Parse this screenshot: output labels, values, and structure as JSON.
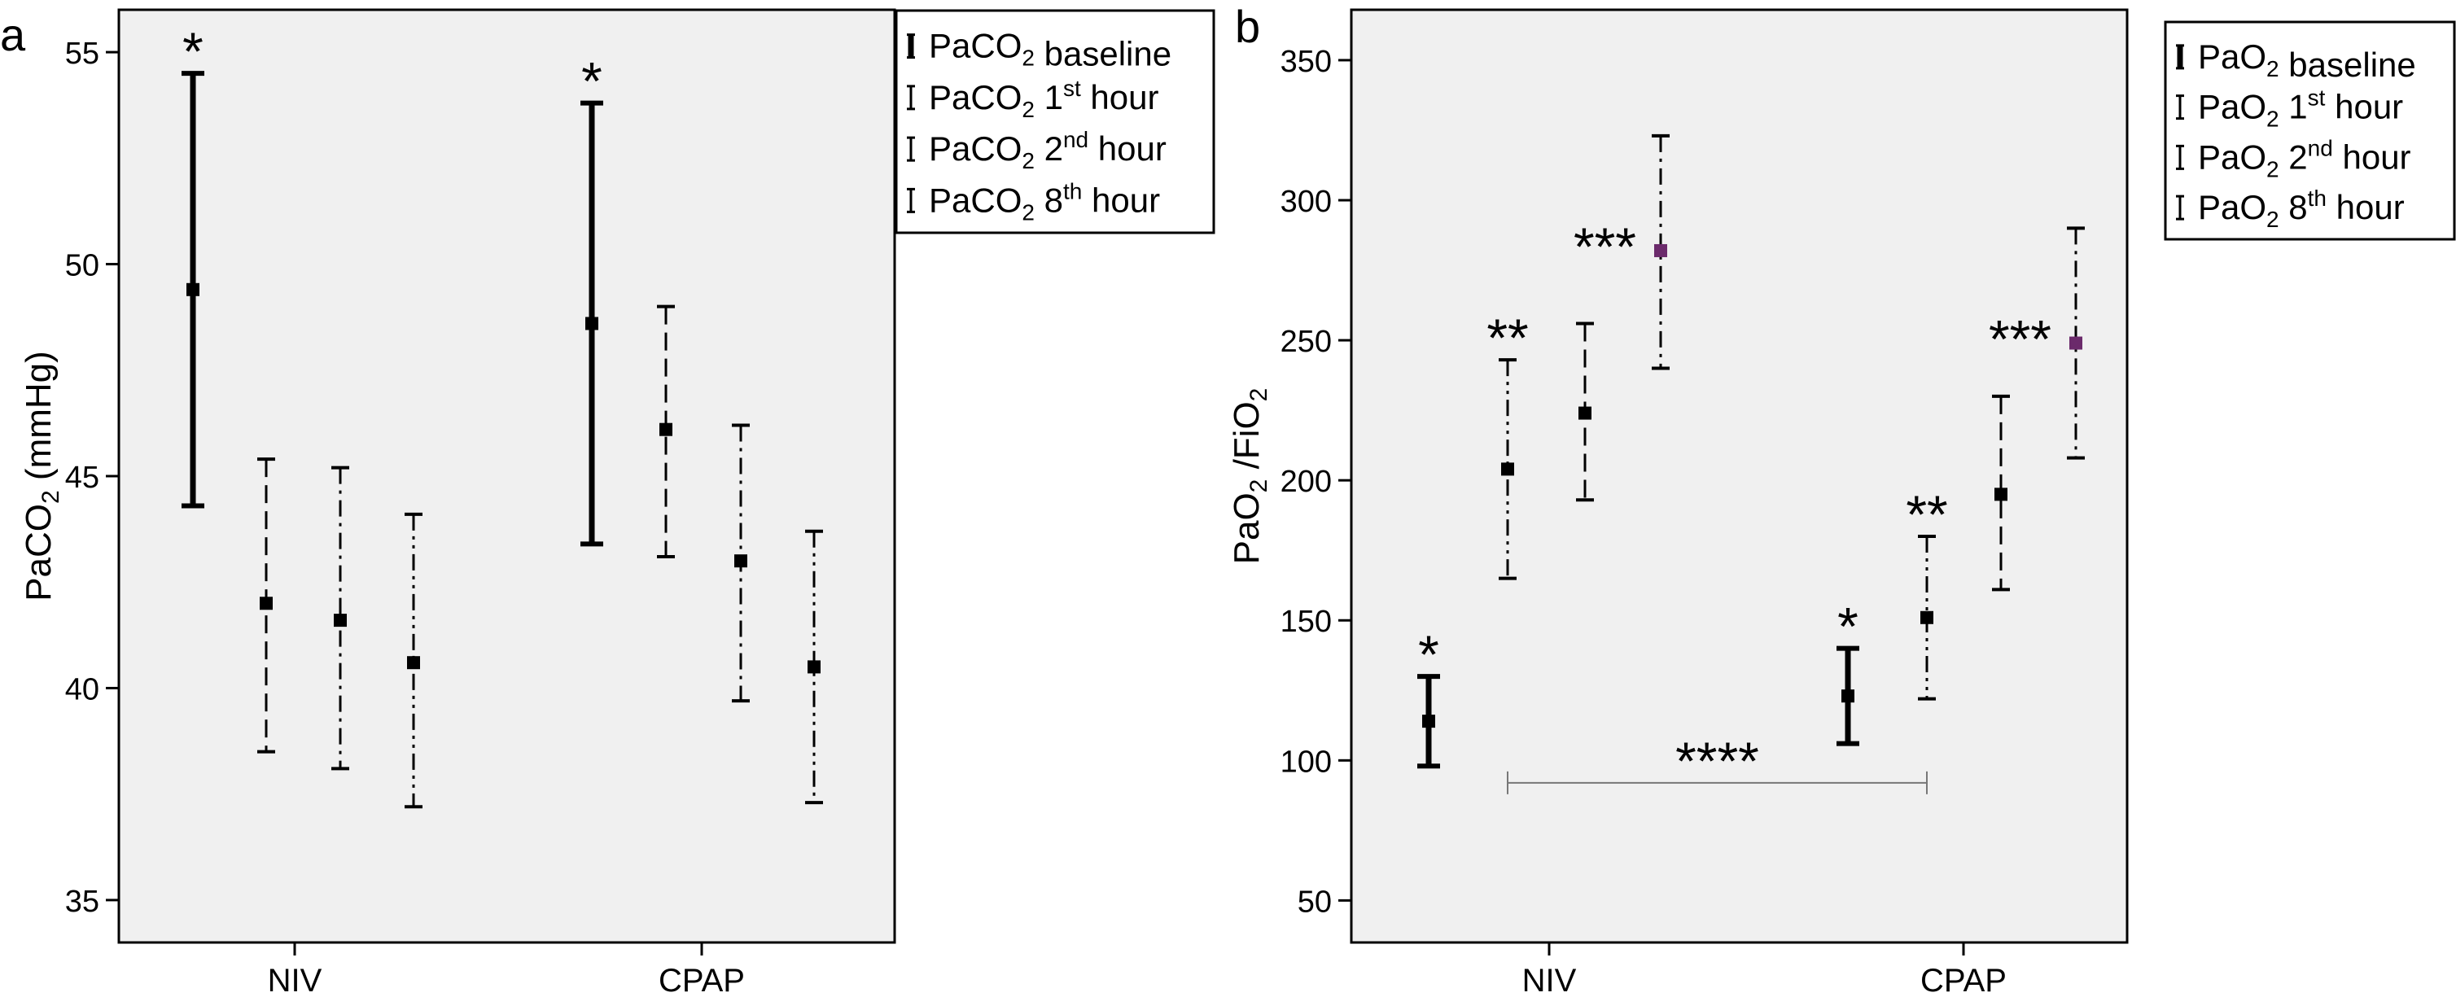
{
  "chart_data": [
    {
      "panel": "a",
      "type": "error_bar",
      "categories": [
        "NIV",
        "CPAP"
      ],
      "ylabel": {
        "main": "PaCO",
        "sub": "2",
        "tail": " (mmHg)"
      },
      "ylim": [
        34,
        56
      ],
      "yticks": [
        35,
        40,
        45,
        50,
        55
      ],
      "legend_position": "top-right",
      "series": [
        {
          "name": {
            "main": "PaCO",
            "sub": "2",
            "sup": "",
            "tail": " baseline"
          },
          "dash": "solid",
          "width": 7,
          "points": [
            {
              "mean": 49.4,
              "low": 44.3,
              "high": 54.5
            },
            {
              "mean": 48.6,
              "low": 43.4,
              "high": 53.8
            }
          ]
        },
        {
          "name": {
            "main": "PaCO",
            "sub": "2",
            "sup": "st",
            "tail": " hour",
            "num": " 1"
          },
          "dash": "dashed",
          "width": 3,
          "points": [
            {
              "mean": 42.0,
              "low": 38.5,
              "high": 45.4
            },
            {
              "mean": 46.1,
              "low": 43.1,
              "high": 49.0
            }
          ]
        },
        {
          "name": {
            "main": "PaCO",
            "sub": "2",
            "sup": "nd",
            "tail": " hour",
            "num": " 2"
          },
          "dash": "dashdot",
          "width": 3,
          "points": [
            {
              "mean": 41.6,
              "low": 38.1,
              "high": 45.2
            },
            {
              "mean": 43.0,
              "low": 39.7,
              "high": 46.2
            }
          ]
        },
        {
          "name": {
            "main": "PaCO",
            "sub": "2",
            "sup": "th",
            "tail": " hour",
            "num": " 8"
          },
          "dash": "dashdotdot",
          "width": 3,
          "points": [
            {
              "mean": 40.6,
              "low": 37.2,
              "high": 44.1
            },
            {
              "mean": 40.5,
              "low": 37.3,
              "high": 43.7
            }
          ]
        }
      ],
      "annotations": [
        {
          "text": "*",
          "category": 0,
          "series": 0
        },
        {
          "text": "*",
          "category": 1,
          "series": 0
        }
      ]
    },
    {
      "panel": "b",
      "type": "error_bar",
      "categories": [
        "NIV",
        "CPAP"
      ],
      "ylabel": {
        "main": "PaO",
        "sub": "2",
        "tail": " /FiO",
        "sub2": "2"
      },
      "ylim": [
        35,
        368
      ],
      "yticks": [
        50,
        100,
        150,
        200,
        250,
        300,
        350
      ],
      "legend_position": "top-right",
      "series": [
        {
          "name": {
            "main": "PaO",
            "sub": "2",
            "sup": "",
            "tail": " baseline"
          },
          "dash": "solid",
          "width": 7,
          "points": [
            {
              "mean": 114,
              "low": 98,
              "high": 130
            },
            {
              "mean": 123,
              "low": 106,
              "high": 140
            }
          ]
        },
        {
          "name": {
            "main": "PaO",
            "sub": "2",
            "sup": "st",
            "tail": " hour",
            "num": " 1"
          },
          "dash": "dashdotdot",
          "width": 3,
          "points": [
            {
              "mean": 204,
              "low": 165,
              "high": 243
            },
            {
              "mean": 151,
              "low": 122,
              "high": 180
            }
          ]
        },
        {
          "name": {
            "main": "PaO",
            "sub": "2",
            "sup": "nd",
            "tail": " hour",
            "num": " 2"
          },
          "dash": "dashed",
          "width": 3,
          "points": [
            {
              "mean": 224,
              "low": 193,
              "high": 256
            },
            {
              "mean": 195,
              "low": 161,
              "high": 230
            }
          ]
        },
        {
          "name": {
            "main": "PaO",
            "sub": "2",
            "sup": "th",
            "tail": " hour",
            "num": " 8"
          },
          "dash": "dashdot",
          "width": 3,
          "points": [
            {
              "mean": 282,
              "low": 240,
              "high": 323
            },
            {
              "mean": 249,
              "low": 208,
              "high": 290
            }
          ]
        }
      ],
      "annotations": [
        {
          "text": "*",
          "category": 0,
          "series": 0
        },
        {
          "text": "**",
          "category": 0,
          "series": 1
        },
        {
          "text": "***",
          "category": 0,
          "series": 3,
          "side": "left"
        },
        {
          "text": "*",
          "category": 1,
          "series": 0
        },
        {
          "text": "**",
          "category": 1,
          "series": 1
        },
        {
          "text": "***",
          "category": 1,
          "series": 3,
          "side": "left"
        }
      ],
      "bracket": {
        "text": "****",
        "value": 92,
        "from": {
          "category": 0,
          "series": 1
        },
        "to": {
          "category": 1,
          "series": 1
        }
      }
    }
  ],
  "colors": {
    "background": "#f0f0f0",
    "ink": "#000000",
    "accent_marker": "#6b2a6b",
    "bracket": "#777777"
  }
}
